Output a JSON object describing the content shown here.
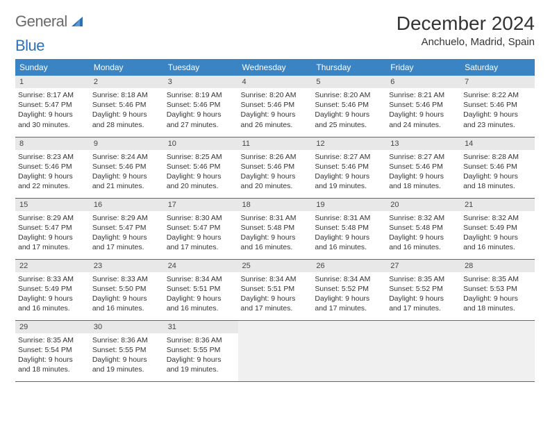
{
  "brand": {
    "part1": "General",
    "part2": "Blue"
  },
  "title": "December 2024",
  "location": "Anchuelo, Madrid, Spain",
  "colors": {
    "header_bg": "#3b84c4",
    "header_text": "#ffffff",
    "daynum_bg": "#e8e8e8",
    "rule": "#2f6fb2",
    "empty_bg": "#f0f0f0",
    "logo_gray": "#6a6a6a",
    "logo_blue": "#2f6fb2",
    "text": "#333333"
  },
  "weekdays": [
    "Sunday",
    "Monday",
    "Tuesday",
    "Wednesday",
    "Thursday",
    "Friday",
    "Saturday"
  ],
  "days": [
    {
      "n": 1,
      "sunrise": "8:17 AM",
      "sunset": "5:47 PM",
      "daylight": "9 hours and 30 minutes."
    },
    {
      "n": 2,
      "sunrise": "8:18 AM",
      "sunset": "5:46 PM",
      "daylight": "9 hours and 28 minutes."
    },
    {
      "n": 3,
      "sunrise": "8:19 AM",
      "sunset": "5:46 PM",
      "daylight": "9 hours and 27 minutes."
    },
    {
      "n": 4,
      "sunrise": "8:20 AM",
      "sunset": "5:46 PM",
      "daylight": "9 hours and 26 minutes."
    },
    {
      "n": 5,
      "sunrise": "8:20 AM",
      "sunset": "5:46 PM",
      "daylight": "9 hours and 25 minutes."
    },
    {
      "n": 6,
      "sunrise": "8:21 AM",
      "sunset": "5:46 PM",
      "daylight": "9 hours and 24 minutes."
    },
    {
      "n": 7,
      "sunrise": "8:22 AM",
      "sunset": "5:46 PM",
      "daylight": "9 hours and 23 minutes."
    },
    {
      "n": 8,
      "sunrise": "8:23 AM",
      "sunset": "5:46 PM",
      "daylight": "9 hours and 22 minutes."
    },
    {
      "n": 9,
      "sunrise": "8:24 AM",
      "sunset": "5:46 PM",
      "daylight": "9 hours and 21 minutes."
    },
    {
      "n": 10,
      "sunrise": "8:25 AM",
      "sunset": "5:46 PM",
      "daylight": "9 hours and 20 minutes."
    },
    {
      "n": 11,
      "sunrise": "8:26 AM",
      "sunset": "5:46 PM",
      "daylight": "9 hours and 20 minutes."
    },
    {
      "n": 12,
      "sunrise": "8:27 AM",
      "sunset": "5:46 PM",
      "daylight": "9 hours and 19 minutes."
    },
    {
      "n": 13,
      "sunrise": "8:27 AM",
      "sunset": "5:46 PM",
      "daylight": "9 hours and 18 minutes."
    },
    {
      "n": 14,
      "sunrise": "8:28 AM",
      "sunset": "5:46 PM",
      "daylight": "9 hours and 18 minutes."
    },
    {
      "n": 15,
      "sunrise": "8:29 AM",
      "sunset": "5:47 PM",
      "daylight": "9 hours and 17 minutes."
    },
    {
      "n": 16,
      "sunrise": "8:29 AM",
      "sunset": "5:47 PM",
      "daylight": "9 hours and 17 minutes."
    },
    {
      "n": 17,
      "sunrise": "8:30 AM",
      "sunset": "5:47 PM",
      "daylight": "9 hours and 17 minutes."
    },
    {
      "n": 18,
      "sunrise": "8:31 AM",
      "sunset": "5:48 PM",
      "daylight": "9 hours and 16 minutes."
    },
    {
      "n": 19,
      "sunrise": "8:31 AM",
      "sunset": "5:48 PM",
      "daylight": "9 hours and 16 minutes."
    },
    {
      "n": 20,
      "sunrise": "8:32 AM",
      "sunset": "5:48 PM",
      "daylight": "9 hours and 16 minutes."
    },
    {
      "n": 21,
      "sunrise": "8:32 AM",
      "sunset": "5:49 PM",
      "daylight": "9 hours and 16 minutes."
    },
    {
      "n": 22,
      "sunrise": "8:33 AM",
      "sunset": "5:49 PM",
      "daylight": "9 hours and 16 minutes."
    },
    {
      "n": 23,
      "sunrise": "8:33 AM",
      "sunset": "5:50 PM",
      "daylight": "9 hours and 16 minutes."
    },
    {
      "n": 24,
      "sunrise": "8:34 AM",
      "sunset": "5:51 PM",
      "daylight": "9 hours and 16 minutes."
    },
    {
      "n": 25,
      "sunrise": "8:34 AM",
      "sunset": "5:51 PM",
      "daylight": "9 hours and 17 minutes."
    },
    {
      "n": 26,
      "sunrise": "8:34 AM",
      "sunset": "5:52 PM",
      "daylight": "9 hours and 17 minutes."
    },
    {
      "n": 27,
      "sunrise": "8:35 AM",
      "sunset": "5:52 PM",
      "daylight": "9 hours and 17 minutes."
    },
    {
      "n": 28,
      "sunrise": "8:35 AM",
      "sunset": "5:53 PM",
      "daylight": "9 hours and 18 minutes."
    },
    {
      "n": 29,
      "sunrise": "8:35 AM",
      "sunset": "5:54 PM",
      "daylight": "9 hours and 18 minutes."
    },
    {
      "n": 30,
      "sunrise": "8:36 AM",
      "sunset": "5:55 PM",
      "daylight": "9 hours and 19 minutes."
    },
    {
      "n": 31,
      "sunrise": "8:36 AM",
      "sunset": "5:55 PM",
      "daylight": "9 hours and 19 minutes."
    }
  ],
  "labels": {
    "sunrise": "Sunrise:",
    "sunset": "Sunset:",
    "daylight": "Daylight:"
  },
  "layout": {
    "cols": 7,
    "rows": 5,
    "start_weekday": 0
  }
}
